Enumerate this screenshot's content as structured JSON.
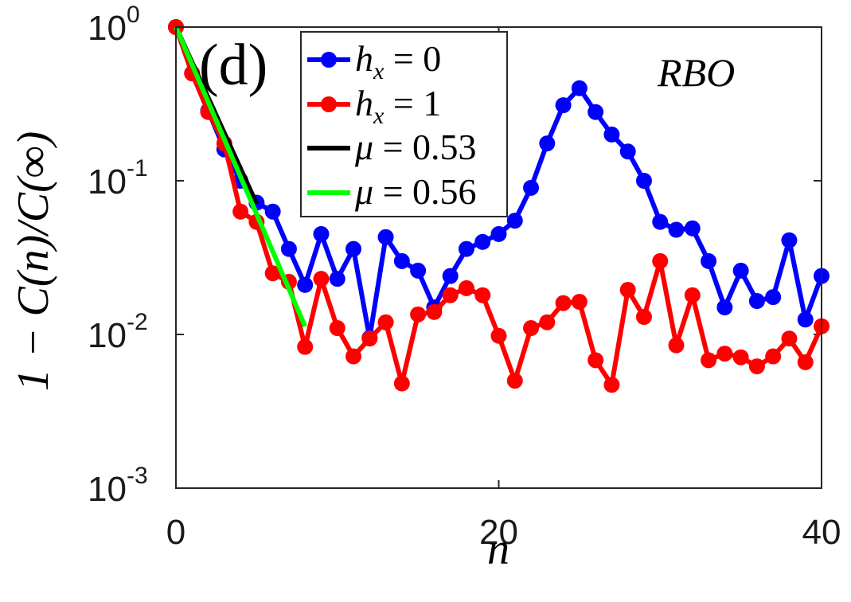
{
  "chart_data": {
    "type": "line",
    "panel_label": "(d)",
    "annotation": "RBO",
    "xlabel": "n",
    "ylabel": "1 − C(n)/C(∞)",
    "y_scale": "log",
    "xlim": [
      0,
      40
    ],
    "ylim": [
      0.001,
      1
    ],
    "x_ticks": [
      0,
      20,
      40
    ],
    "y_ticks": [
      {
        "value": 1,
        "base": "10",
        "exp": "0"
      },
      {
        "value": 0.1,
        "base": "10",
        "exp": "-1"
      },
      {
        "value": 0.01,
        "base": "10",
        "exp": "-2"
      },
      {
        "value": 0.001,
        "base": "10",
        "exp": "-3"
      }
    ],
    "series": [
      {
        "name": "h_x = 0",
        "legend": {
          "var": "h",
          "sub": "x",
          "rest": " = 0"
        },
        "color": "#0000ff",
        "markers": true,
        "x": [
          0,
          1,
          2,
          3,
          4,
          5,
          6,
          7,
          8,
          9,
          10,
          11,
          12,
          13,
          14,
          15,
          16,
          17,
          18,
          19,
          20,
          21,
          22,
          23,
          24,
          25,
          26,
          27,
          28,
          29,
          30,
          31,
          32,
          33,
          34,
          35,
          36,
          37,
          38,
          39,
          40
        ],
        "y": [
          1.0,
          0.5,
          0.285,
          0.16,
          0.1,
          0.072,
          0.063,
          0.036,
          0.021,
          0.045,
          0.023,
          0.036,
          0.0095,
          0.043,
          0.03,
          0.026,
          0.015,
          0.024,
          0.036,
          0.04,
          0.045,
          0.055,
          0.09,
          0.175,
          0.31,
          0.4,
          0.28,
          0.2,
          0.155,
          0.1,
          0.054,
          0.048,
          0.049,
          0.03,
          0.015,
          0.026,
          0.0165,
          0.0175,
          0.041,
          0.0125,
          0.024
        ]
      },
      {
        "name": "h_x = 1",
        "legend": {
          "var": "h",
          "sub": "x",
          "rest": " = 1"
        },
        "color": "#ff0000",
        "markers": true,
        "x": [
          0,
          1,
          2,
          3,
          4,
          5,
          6,
          7,
          8,
          9,
          10,
          11,
          12,
          13,
          14,
          15,
          16,
          17,
          18,
          19,
          20,
          21,
          22,
          23,
          24,
          25,
          26,
          27,
          28,
          29,
          30,
          31,
          32,
          33,
          34,
          35,
          36,
          37,
          38,
          39,
          40
        ],
        "y": [
          1.0,
          0.5,
          0.28,
          0.175,
          0.063,
          0.054,
          0.025,
          0.022,
          0.0083,
          0.023,
          0.011,
          0.0072,
          0.0094,
          0.012,
          0.0048,
          0.0135,
          0.014,
          0.018,
          0.02,
          0.018,
          0.0098,
          0.005,
          0.011,
          0.012,
          0.016,
          0.0163,
          0.0068,
          0.0047,
          0.0195,
          0.013,
          0.03,
          0.0085,
          0.018,
          0.0068,
          0.0075,
          0.0071,
          0.0062,
          0.0072,
          0.0094,
          0.0066,
          0.0113
        ]
      },
      {
        "name": "μ = 0.53",
        "legend": {
          "var": "μ",
          "sub": "",
          "rest": " = 0.53"
        },
        "color": "#000000",
        "markers": false,
        "x": [
          0,
          5
        ],
        "y": [
          1.0,
          0.0707
        ]
      },
      {
        "name": "μ = 0.56",
        "legend": {
          "var": "μ",
          "sub": "",
          "rest": " = 0.56"
        },
        "color": "#00ff00",
        "markers": false,
        "x": [
          0,
          8
        ],
        "y": [
          1.0,
          0.0113
        ]
      }
    ]
  }
}
